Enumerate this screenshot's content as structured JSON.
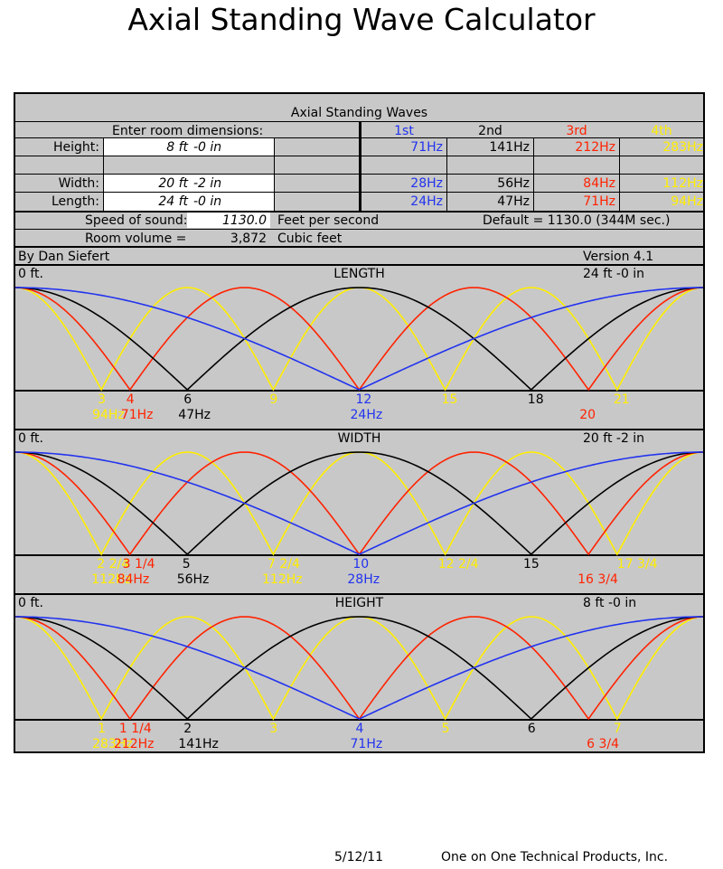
{
  "title": "Axial Standing Wave Calculator",
  "table": {
    "heading": "Axial Standing Waves",
    "enter_label": "Enter room dimensions:",
    "harmonic_headers": [
      "1st",
      "2nd",
      "3rd",
      "4th"
    ],
    "rows": [
      {
        "label": "Height:",
        "ft": "8 ft",
        "in": "-0 in",
        "freqs": [
          "71Hz",
          "141Hz",
          "212Hz",
          "283Hz"
        ]
      },
      {
        "label": "Width:",
        "ft": "20 ft",
        "in": "-2 in",
        "freqs": [
          "28Hz",
          "56Hz",
          "84Hz",
          "112Hz"
        ]
      },
      {
        "label": "Length:",
        "ft": "24 ft",
        "in": "-0 in",
        "freqs": [
          "24Hz",
          "47Hz",
          "71Hz",
          "94Hz"
        ]
      }
    ],
    "speed_label": "Speed of sound:",
    "speed_value": "1130.0",
    "speed_unit": "Feet per second",
    "default_note": "Default = 1130.0 (344M sec.)",
    "volume_label": "Room volume =",
    "volume_value": "3,872",
    "volume_unit": "Cubic feet",
    "author": "By Dan Siefert",
    "version": "Version 4.1"
  },
  "colors": {
    "h1": "#2233ee",
    "h2": "#000000",
    "h3": "#ff2200",
    "h4": "#ffee00"
  },
  "panels": [
    {
      "name": "LENGTH",
      "start": "0 ft.",
      "end": "24 ft -0 in",
      "dimension_ft": 24,
      "markers": [
        {
          "pos": 3,
          "label": "3",
          "freq": "94Hz",
          "color": "h4"
        },
        {
          "pos": 4,
          "label": "4",
          "freq": "71Hz",
          "color": "h3"
        },
        {
          "pos": 6,
          "label": "6",
          "freq": "47Hz",
          "color": "h2"
        },
        {
          "pos": 9,
          "label": "9",
          "freq": "",
          "color": "h4"
        },
        {
          "pos": 12,
          "label": "12",
          "freq": "24Hz",
          "color": "h1"
        },
        {
          "pos": 15,
          "label": "15",
          "freq": "",
          "color": "h4"
        },
        {
          "pos": 18,
          "label": "18",
          "freq": "",
          "color": "h2"
        },
        {
          "pos": 20,
          "label": "",
          "freq": "20",
          "color": "h3"
        },
        {
          "pos": 21,
          "label": "21",
          "freq": "",
          "color": "h4"
        }
      ]
    },
    {
      "name": "WIDTH",
      "start": "0 ft.",
      "end": "20 ft -2 in",
      "dimension_ft": 20.1667,
      "markers": [
        {
          "pos": 2.5,
          "label": "2 2/4",
          "freq": "112Hz",
          "color": "h4"
        },
        {
          "pos": 3.25,
          "label": "3 1/4",
          "freq": "84Hz",
          "color": "h3"
        },
        {
          "pos": 5,
          "label": "5",
          "freq": "56Hz",
          "color": "h2"
        },
        {
          "pos": 7.5,
          "label": "7 2/4",
          "freq": "112Hz",
          "color": "h4"
        },
        {
          "pos": 10,
          "label": "10",
          "freq": "28Hz",
          "color": "h1"
        },
        {
          "pos": 12.5,
          "label": "12 2/4",
          "freq": "",
          "color": "h4"
        },
        {
          "pos": 15,
          "label": "15",
          "freq": "",
          "color": "h2"
        },
        {
          "pos": 16.75,
          "label": "",
          "freq": "16 3/4",
          "color": "h3"
        },
        {
          "pos": 17.75,
          "label": "17 3/4",
          "freq": "",
          "color": "h4"
        }
      ]
    },
    {
      "name": "HEIGHT",
      "start": "0 ft.",
      "end": "8 ft -0 in",
      "dimension_ft": 8,
      "markers": [
        {
          "pos": 1,
          "label": "1",
          "freq": "283Hz",
          "color": "h4"
        },
        {
          "pos": 1.25,
          "label": "1 1/4",
          "freq": "212Hz",
          "color": "h3"
        },
        {
          "pos": 2,
          "label": "2",
          "freq": "141Hz",
          "color": "h2"
        },
        {
          "pos": 3,
          "label": "3",
          "freq": "",
          "color": "h4"
        },
        {
          "pos": 4,
          "label": "4",
          "freq": "71Hz",
          "color": "h1"
        },
        {
          "pos": 5,
          "label": "5",
          "freq": "",
          "color": "h4"
        },
        {
          "pos": 6,
          "label": "6",
          "freq": "",
          "color": "h2"
        },
        {
          "pos": 6.75,
          "label": "",
          "freq": "6 3/4",
          "color": "h3"
        },
        {
          "pos": 7,
          "label": "7",
          "freq": "",
          "color": "h4"
        }
      ]
    }
  ],
  "footer": {
    "date": "5/12/11",
    "company": "One on One Technical Products, Inc."
  }
}
